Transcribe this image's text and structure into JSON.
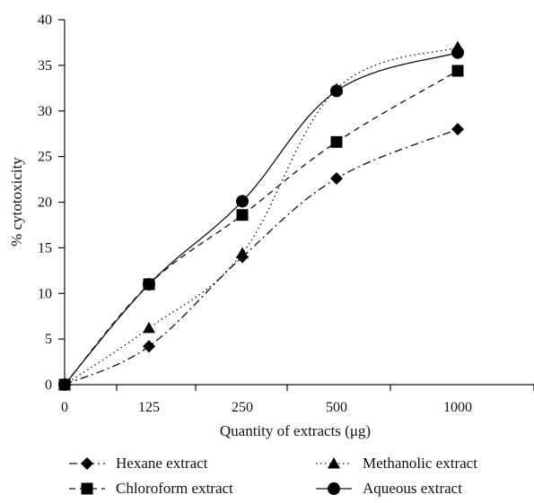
{
  "chart_data": {
    "type": "line",
    "title": "",
    "xlabel": "Quantity of extracts (μg)",
    "ylabel": "% cytotoxicity",
    "categories": [
      "0",
      "125",
      "250",
      "500",
      "1000"
    ],
    "ylim": [
      0,
      40
    ],
    "yticks": [
      "0",
      "5",
      "10",
      "15",
      "20",
      "25",
      "30",
      "35",
      "40"
    ],
    "grid": false,
    "legend_position": "bottom",
    "series": [
      {
        "name": "Hexane extract",
        "marker": "diamond",
        "dash": "dashdot",
        "values": [
          0,
          4.2,
          14,
          22.6,
          28
        ]
      },
      {
        "name": "Methanolic extract",
        "marker": "triangle",
        "dash": "dotted",
        "values": [
          0,
          6.2,
          14.4,
          32.4,
          37
        ]
      },
      {
        "name": "Chloroform extract",
        "marker": "square",
        "dash": "dashed",
        "values": [
          0,
          11,
          18.6,
          26.6,
          34.4
        ]
      },
      {
        "name": "Aqueous extract",
        "marker": "circle",
        "dash": "solid",
        "values": [
          0,
          11,
          20.1,
          32.2,
          36.4
        ]
      }
    ]
  }
}
